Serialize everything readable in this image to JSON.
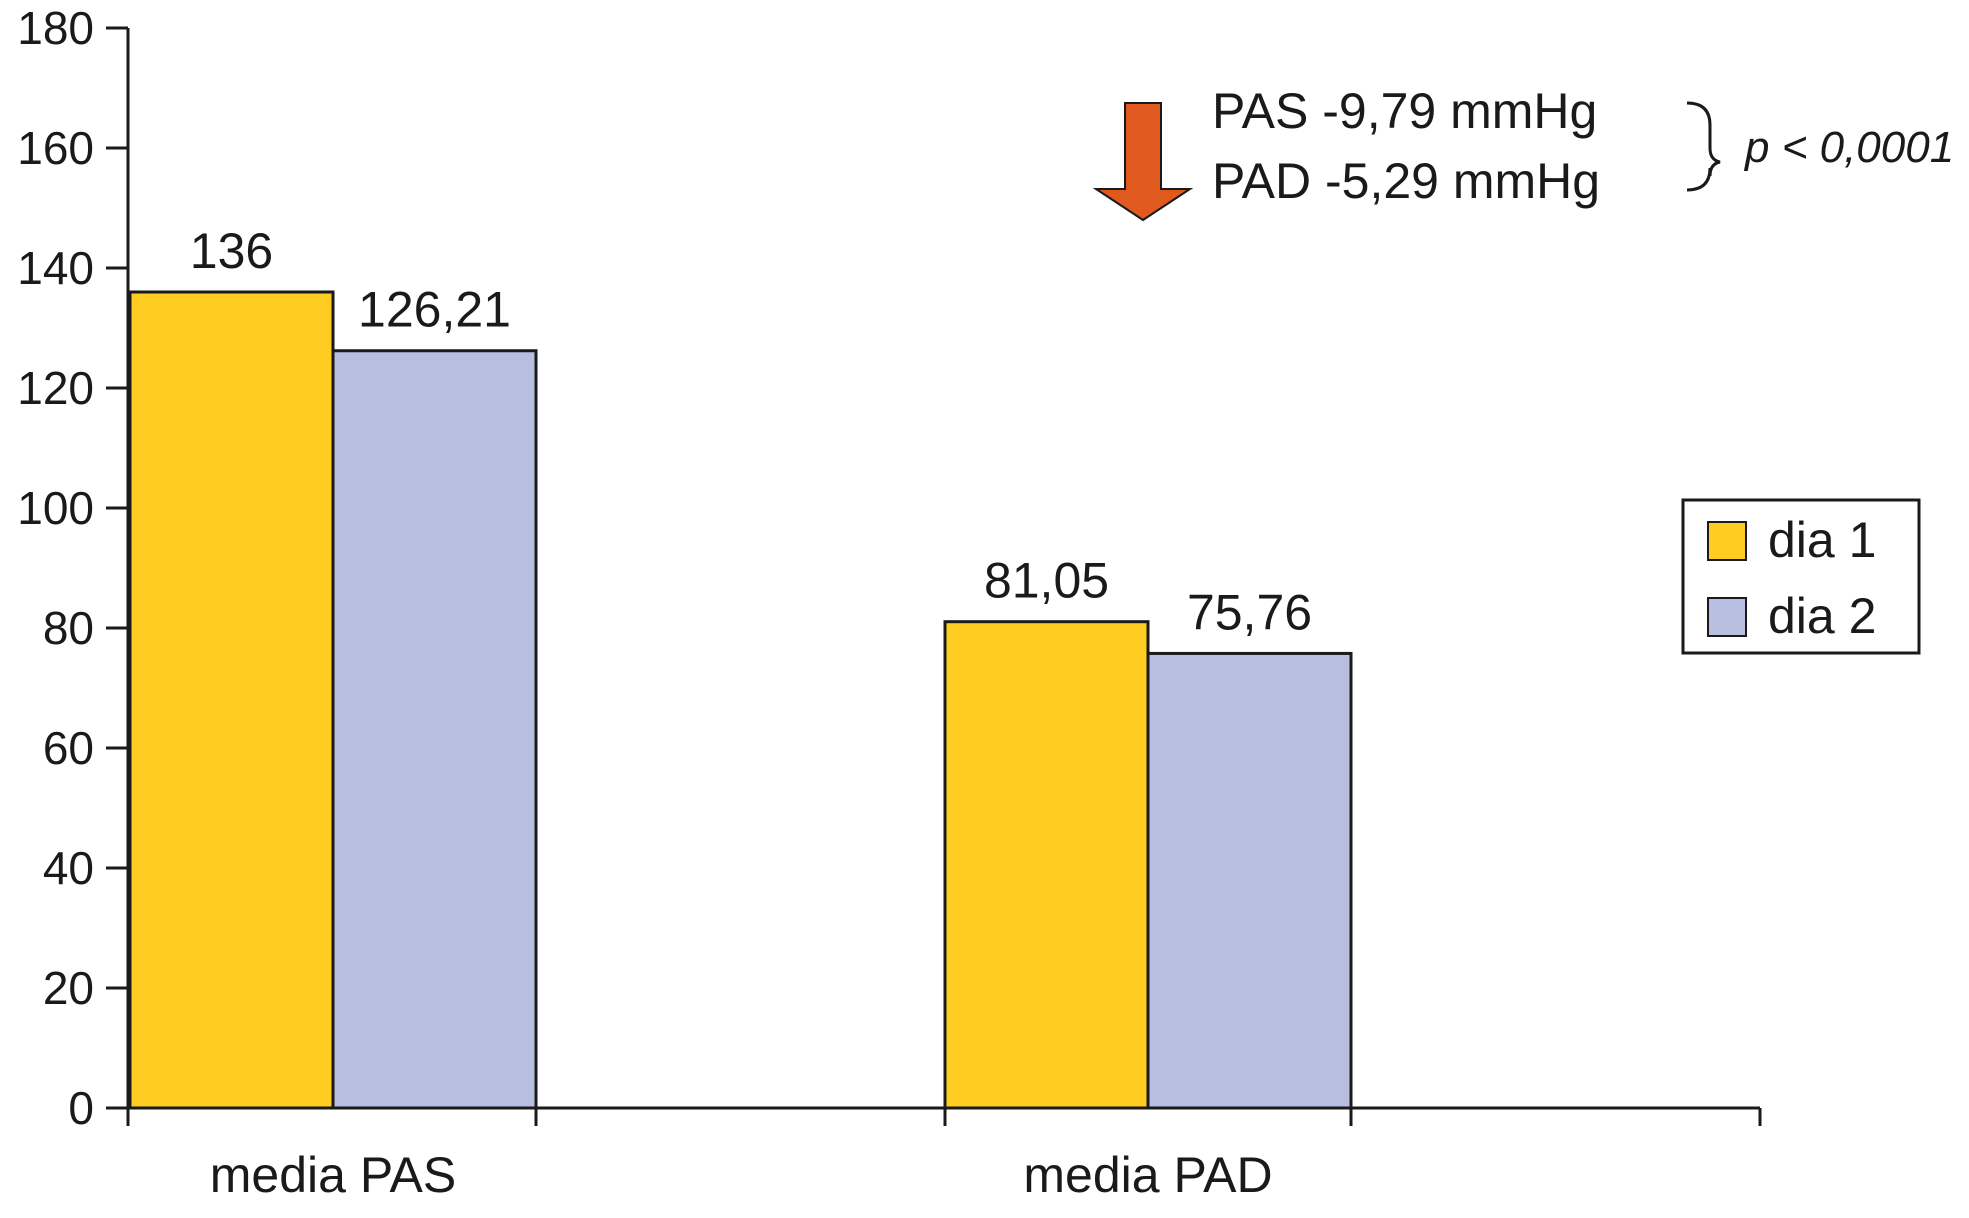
{
  "chart_data": {
    "type": "bar",
    "categories": [
      "media PAS",
      "media PAD"
    ],
    "series": [
      {
        "name": "dia 1",
        "values": [
          136,
          81.05
        ],
        "labels": [
          "136",
          "81,05"
        ],
        "color": "#FFCC22"
      },
      {
        "name": "dia 2",
        "values": [
          126.21,
          75.76
        ],
        "labels": [
          "126,21",
          "75,76"
        ],
        "color": "#B8BEE0"
      }
    ],
    "ylim": [
      0,
      180
    ],
    "yticks": [
      0,
      20,
      40,
      60,
      80,
      100,
      120,
      140,
      160,
      180
    ],
    "grid": false,
    "legend_position": "right",
    "annotations": {
      "arrow_color": "#E05A20",
      "line1": "PAS -9,79 mmHg",
      "line2": "PAD -5,29 mmHg",
      "p_value": "p < 0,0001"
    }
  }
}
